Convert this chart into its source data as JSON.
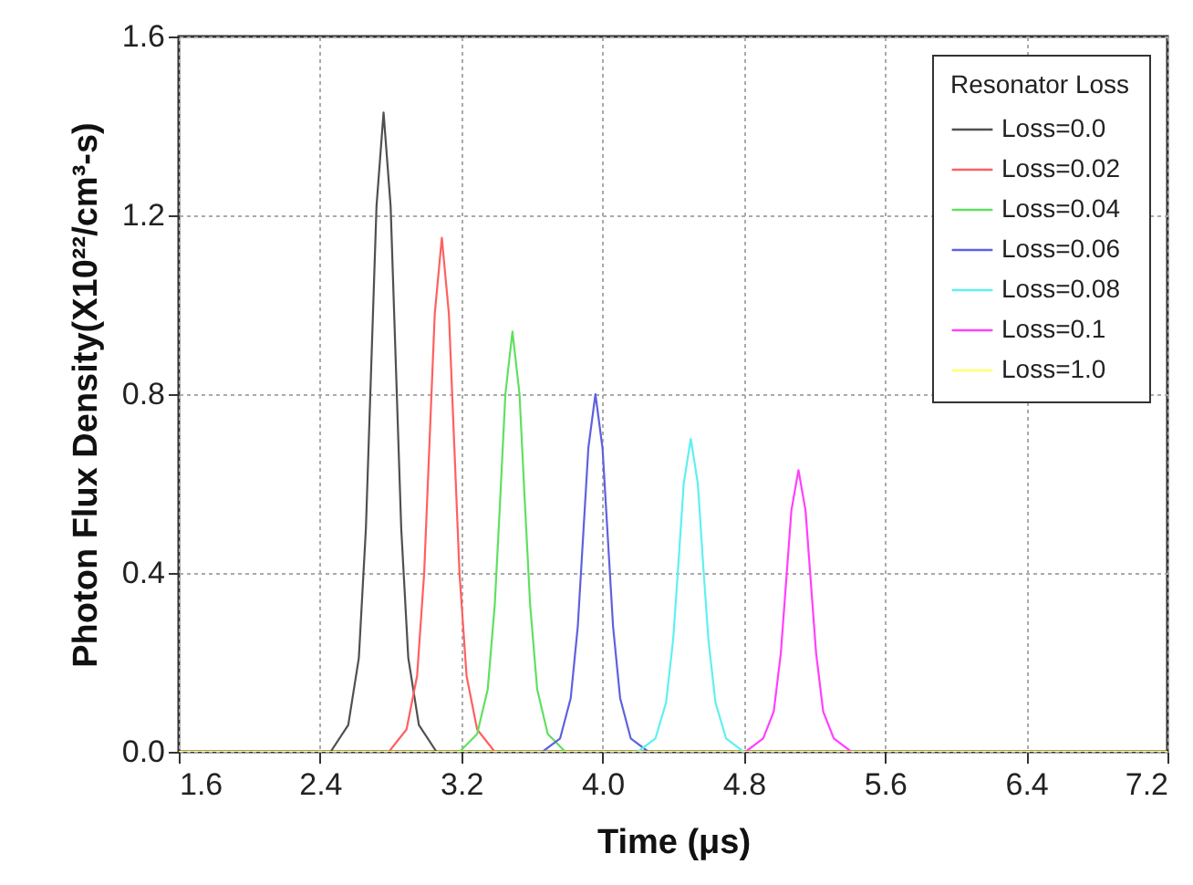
{
  "chart_data": {
    "type": "line",
    "xlabel": "Time (μs)",
    "ylabel": "Photon Flux Density(X10²²/cm³-s)",
    "legend_title": "Resonator Loss",
    "xlim": [
      1.6,
      7.2
    ],
    "xticks": [
      1.6,
      2.4,
      3.2,
      {
        "value": 4,
        "label": "4.0"
      },
      4.8,
      5.6,
      6.4,
      7.2
    ],
    "ylim": [
      0,
      1.6
    ],
    "yticks": [
      {
        "value": 0,
        "label": "0.0"
      },
      0.4,
      0.8,
      1.2,
      1.6
    ],
    "grid": true,
    "legend": "top right",
    "marker": "none",
    "line_style": "solid",
    "series": [
      {
        "name": "Loss=0.0",
        "color": "#505050",
        "x": [
          2.46,
          2.56,
          2.62,
          2.66,
          2.69,
          2.72,
          2.76,
          2.8,
          2.83,
          2.86,
          2.9,
          2.96,
          3.06
        ],
        "values": [
          0,
          0.06,
          0.21,
          0.5,
          0.86,
          1.22,
          1.43,
          1.22,
          0.86,
          0.5,
          0.21,
          0.06,
          0
        ]
      },
      {
        "name": "Loss=0.02",
        "color": "#ff6060",
        "x": [
          2.79,
          2.89,
          2.95,
          2.99,
          3.02,
          3.05,
          3.09,
          3.13,
          3.16,
          3.19,
          3.23,
          3.29,
          3.39
        ],
        "values": [
          0,
          0.05,
          0.17,
          0.4,
          0.69,
          0.98,
          1.15,
          0.98,
          0.69,
          0.4,
          0.17,
          0.05,
          0
        ]
      },
      {
        "name": "Loss=0.04",
        "color": "#60e060",
        "x": [
          3.19,
          3.29,
          3.35,
          3.39,
          3.42,
          3.45,
          3.49,
          3.53,
          3.56,
          3.59,
          3.63,
          3.69,
          3.79
        ],
        "values": [
          0,
          0.04,
          0.14,
          0.33,
          0.56,
          0.8,
          0.94,
          0.8,
          0.56,
          0.33,
          0.14,
          0.04,
          0
        ]
      },
      {
        "name": "Loss=0.06",
        "color": "#6060e0",
        "x": [
          3.66,
          3.76,
          3.82,
          3.86,
          3.89,
          3.92,
          3.96,
          4.0,
          4.03,
          4.06,
          4.1,
          4.16,
          4.26
        ],
        "values": [
          0,
          0.03,
          0.12,
          0.28,
          0.48,
          0.68,
          0.8,
          0.68,
          0.48,
          0.28,
          0.12,
          0.03,
          0
        ]
      },
      {
        "name": "Loss=0.08",
        "color": "#60f0f0",
        "x": [
          4.2,
          4.3,
          4.36,
          4.4,
          4.43,
          4.46,
          4.5,
          4.54,
          4.57,
          4.6,
          4.64,
          4.7,
          4.8
        ],
        "values": [
          0,
          0.03,
          0.11,
          0.25,
          0.42,
          0.6,
          0.7,
          0.6,
          0.42,
          0.25,
          0.11,
          0.03,
          0
        ]
      },
      {
        "name": "Loss=0.1",
        "color": "#ff40ff",
        "x": [
          4.81,
          4.91,
          4.97,
          5.01,
          5.04,
          5.07,
          5.11,
          5.15,
          5.18,
          5.21,
          5.25,
          5.31,
          5.41
        ],
        "values": [
          0,
          0.03,
          0.09,
          0.22,
          0.38,
          0.54,
          0.63,
          0.54,
          0.38,
          0.22,
          0.09,
          0.03,
          0
        ]
      },
      {
        "name": "Loss=1.0",
        "color": "#ffff70",
        "x": [
          1.6,
          7.2
        ],
        "values": [
          0,
          0
        ]
      }
    ]
  }
}
